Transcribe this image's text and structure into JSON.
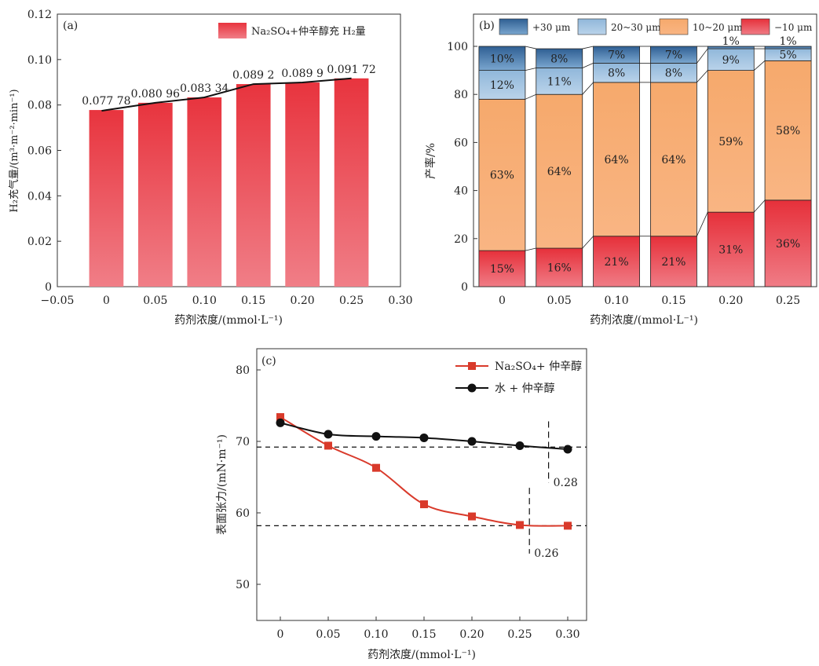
{
  "chart_data": [
    {
      "panel": "(a)",
      "type": "bar",
      "xlabel": "药剂浓度/(mmol·L⁻¹)",
      "ylabel": "H₂充气量/(m³·m⁻²·min⁻¹)",
      "xlim": [
        -0.05,
        0.3
      ],
      "ylim": [
        0,
        0.12
      ],
      "xticks": [
        -0.05,
        0,
        0.05,
        0.1,
        0.15,
        0.2,
        0.25,
        0.3
      ],
      "xtick_labels": [
        "−0.05",
        "0",
        "0.05",
        "0.10",
        "0.15",
        "0.20",
        "0.25",
        "0.30"
      ],
      "yticks": [
        0,
        0.02,
        0.04,
        0.06,
        0.08,
        0.1,
        0.12
      ],
      "ytick_labels": [
        "0",
        "0.02",
        "0.04",
        "0.06",
        "0.08",
        "0.10",
        "0.12"
      ],
      "legend": "Na₂SO₄+仲辛醇充 H₂量",
      "legend_position": "top-right",
      "bar_color": "#e8434a",
      "bar_color_light": "#f08a92",
      "x": [
        0,
        0.05,
        0.1,
        0.15,
        0.2,
        0.25
      ],
      "values": [
        0.07778,
        0.08096,
        0.08334,
        0.0892,
        0.0899,
        0.09172
      ],
      "value_labels": [
        "0.077 78",
        "0.080 96",
        "0.083 34",
        "0.089 2",
        "0.089 9",
        "0.091 72"
      ]
    },
    {
      "panel": "(b)",
      "type": "bar",
      "stacked": true,
      "xlabel": "药剂浓度/(mmol·L⁻¹)",
      "ylabel": "产率/%",
      "ylim": [
        0,
        100
      ],
      "yticks": [
        0,
        20,
        40,
        60,
        80,
        100
      ],
      "categories": [
        "0",
        "0.05",
        "0.10",
        "0.15",
        "0.20",
        "0.25"
      ],
      "legend_position": "top",
      "series": [
        {
          "name": "−10 μm",
          "color": "#e8434a",
          "values": [
            15,
            16,
            21,
            21,
            31,
            36
          ],
          "labels": [
            "15%",
            "16%",
            "21%",
            "21%",
            "31%",
            "36%"
          ]
        },
        {
          "name": "10~20 μm",
          "color": "#f7ad74",
          "values": [
            63,
            64,
            64,
            64,
            59,
            58
          ],
          "labels": [
            "63%",
            "64%",
            "64%",
            "64%",
            "59%",
            "58%"
          ]
        },
        {
          "name": "20~30 μm",
          "color": "#a3c4e0",
          "values": [
            12,
            11,
            8,
            8,
            9,
            5
          ],
          "labels": [
            "12%",
            "11%",
            "8%",
            "8%",
            "9%",
            "5%"
          ]
        },
        {
          "name": "+30 μm",
          "color": "#4d7eb0",
          "values": [
            10,
            8,
            7,
            7,
            1,
            1
          ],
          "labels": [
            "10%",
            "8%",
            "7%",
            "7%",
            "1%",
            "1%"
          ]
        }
      ]
    },
    {
      "panel": "(c)",
      "type": "line",
      "xlabel": "药剂浓度/(mmol·L⁻¹)",
      "ylabel": "表面张力/(mN·m⁻¹)",
      "xlim": [
        -0.025,
        0.325
      ],
      "ylim": [
        46,
        82
      ],
      "xticks": [
        0,
        0.05,
        0.1,
        0.15,
        0.2,
        0.25,
        0.3
      ],
      "xtick_labels": [
        "0",
        "0.05",
        "0.10",
        "0.15",
        "0.20",
        "0.25",
        "0.30"
      ],
      "yticks": [
        50,
        60,
        70,
        80
      ],
      "legend_position": "top-right",
      "x": [
        0,
        0.05,
        0.1,
        0.15,
        0.2,
        0.25,
        0.3
      ],
      "series": [
        {
          "name": "Na₂SO₄+ 仲辛醇",
          "color": "#d93a2b",
          "marker": "square",
          "values": [
            73.4,
            69.4,
            66.3,
            61.2,
            59.5,
            58.3,
            58.2
          ]
        },
        {
          "name": "水 + 仲辛醇",
          "color": "#111111",
          "marker": "circle",
          "values": [
            72.6,
            71.0,
            70.7,
            70.5,
            70.0,
            69.4,
            68.9
          ]
        }
      ],
      "reference_lines": {
        "horizontal": [
          69.2,
          58.2
        ],
        "vertical": [
          {
            "x": 0.28,
            "from": 64.2,
            "to": 72.8,
            "label": "0.28"
          },
          {
            "x": 0.26,
            "from": 54.3,
            "to": 63.5,
            "label": "0.26"
          }
        ]
      }
    }
  ]
}
